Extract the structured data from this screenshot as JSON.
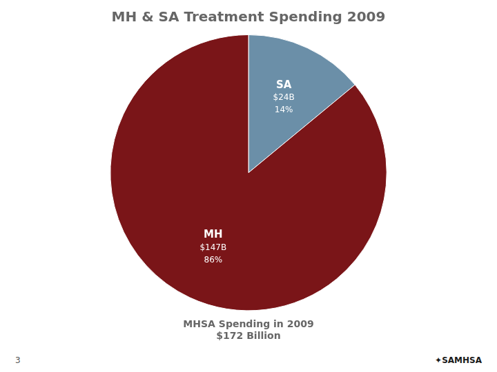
{
  "chart_data": {
    "type": "pie",
    "title": "MH & SA Treatment Spending 2009",
    "subtitle": "MHSA Spending in 2009\n$172 Billion",
    "categories": [
      "SA",
      "MH"
    ],
    "values": [
      14,
      86
    ],
    "colors": [
      "#6B8FA8",
      "#7A1518"
    ],
    "data_labels": true,
    "value_labels": [
      "14%",
      "86%"
    ],
    "amount_labels": [
      "$24B",
      "$147B"
    ],
    "annotations": [
      "3",
      "✦SAMHSA"
    ]
  }
}
